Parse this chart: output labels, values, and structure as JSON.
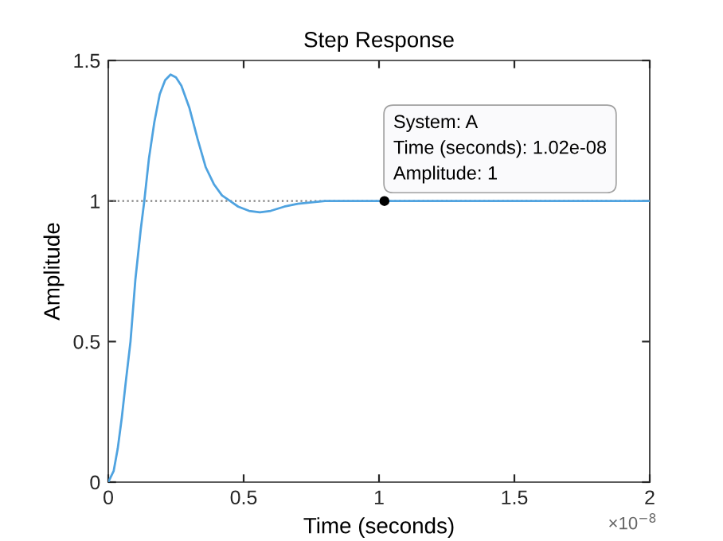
{
  "chart_data": {
    "type": "line",
    "title": "Step Response",
    "xlabel": "Time (seconds)",
    "ylabel": "Amplitude",
    "series": [
      {
        "color": "#4fa3e0",
        "x": [
          0,
          0.02,
          0.035,
          0.05,
          0.065,
          0.082,
          0.1,
          0.12,
          0.133,
          0.15,
          0.17,
          0.19,
          0.21,
          0.23,
          0.25,
          0.27,
          0.3,
          0.33,
          0.36,
          0.39,
          0.42,
          0.45,
          0.48,
          0.52,
          0.56,
          0.6,
          0.65,
          0.7,
          0.8,
          0.9,
          1.02,
          1.5,
          2.0
        ],
        "values": [
          0,
          0.04,
          0.12,
          0.23,
          0.36,
          0.5,
          0.72,
          0.9,
          1.0,
          1.15,
          1.28,
          1.38,
          1.43,
          1.45,
          1.44,
          1.41,
          1.33,
          1.22,
          1.12,
          1.06,
          1.02,
          1.0,
          0.98,
          0.965,
          0.96,
          0.965,
          0.98,
          0.99,
          1.0,
          1.0,
          1.0,
          1.0,
          1.0
        ]
      }
    ],
    "xlim": [
      0,
      2
    ],
    "ylim": [
      0,
      1.5
    ],
    "xticks": [
      0,
      0.5,
      1,
      1.5,
      2
    ],
    "yticks": [
      0,
      0.5,
      1,
      1.5
    ],
    "ref_lines": [
      {
        "axis": "y",
        "value": 1,
        "color": "#808080",
        "line_style": "dotted"
      }
    ],
    "annotations": [
      {
        "text": "System: A\nTime (seconds): 1.02e-08\nAmplitude: 1",
        "x": 1.02,
        "y": 1
      },
      "×10$^{−8}$"
    ],
    "grid": false,
    "legend": false
  }
}
